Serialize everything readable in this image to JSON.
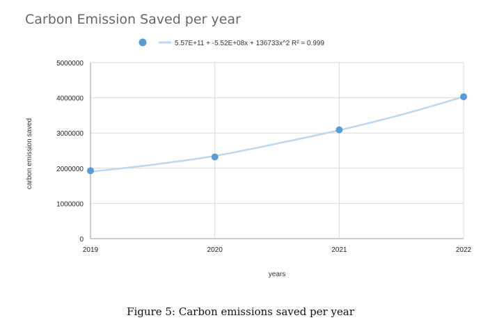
{
  "chart_data": {
    "type": "scatter",
    "title": "Carbon Emission Saved per year",
    "xlabel": "years",
    "ylabel": "carbon emission saved",
    "x_tick_labels": [
      "2019",
      "2020",
      "2021",
      "2022"
    ],
    "y_tick_labels": [
      "0",
      "1000000",
      "2000000",
      "3000000",
      "4000000",
      "5000000"
    ],
    "xlim": [
      2019,
      2022
    ],
    "ylim": [
      0,
      5000000
    ],
    "grid": true,
    "legend_position": "top",
    "series": [
      {
        "name": "carbon emission saved",
        "color": "#5b9bd5",
        "x": [
          2019,
          2020,
          2021,
          2022
        ],
        "y": [
          1930000,
          2320000,
          3090000,
          4030000
        ]
      }
    ],
    "trendline": {
      "type": "polynomial-2",
      "color": "#bdd7ee",
      "equation": "5.57E+11 + -5.52E+08x + 136733x^2 R² = 0.999",
      "points_x": [
        2019,
        2019.5,
        2020,
        2020.5,
        2021,
        2021.5,
        2022
      ],
      "points_y": [
        1900000,
        2100000,
        2350000,
        2700000,
        3080000,
        3520000,
        4030000
      ]
    }
  },
  "caption": "Figure 5: Carbon emissions saved per year"
}
